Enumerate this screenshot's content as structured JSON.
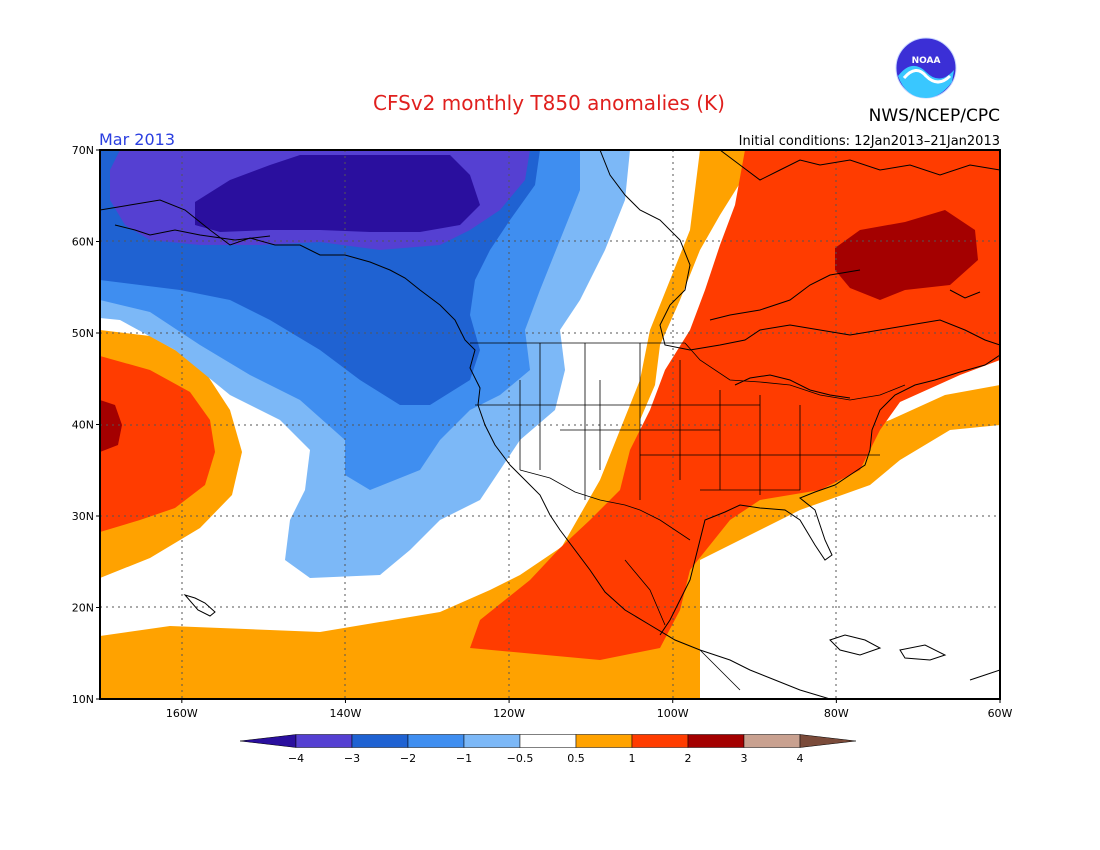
{
  "header": {
    "title": "CFSv2 monthly T850 anomalies (K)",
    "credit": "NWS/NCEP/CPC",
    "logo_text": "NOAA",
    "period": "Mar 2013",
    "initial_conditions": "Initial conditions: 12Jan2013–21Jan2013"
  },
  "map": {
    "lon_range": [
      -170,
      -60
    ],
    "lat_range": [
      10,
      70
    ],
    "lat_ticks": [
      {
        "value": 70,
        "label": "70N"
      },
      {
        "value": 60,
        "label": "60N"
      },
      {
        "value": 50,
        "label": "50N"
      },
      {
        "value": 40,
        "label": "40N"
      },
      {
        "value": 30,
        "label": "30N"
      },
      {
        "value": 20,
        "label": "20N"
      },
      {
        "value": 10,
        "label": "10N"
      }
    ],
    "lon_ticks": [
      {
        "value": -160,
        "label": "160W"
      },
      {
        "value": -140,
        "label": "140W"
      },
      {
        "value": -120,
        "label": "120W"
      },
      {
        "value": -100,
        "label": "100W"
      },
      {
        "value": -80,
        "label": "80W"
      },
      {
        "value": -60,
        "label": "60W"
      }
    ],
    "grid": "dotted"
  },
  "colorbar": {
    "labels": [
      "−4",
      "−3",
      "−2",
      "−1",
      "−0.5",
      "0.5",
      "1",
      "2",
      "3",
      "4"
    ],
    "colors": [
      "#2a0f9e",
      "#5540d2",
      "#1f62d2",
      "#3f8ef0",
      "#7cb8f7",
      "#ffffff",
      "#ffa200",
      "#ff3c00",
      "#a40000",
      "#c9a190",
      "#7b4b3a"
    ]
  }
}
